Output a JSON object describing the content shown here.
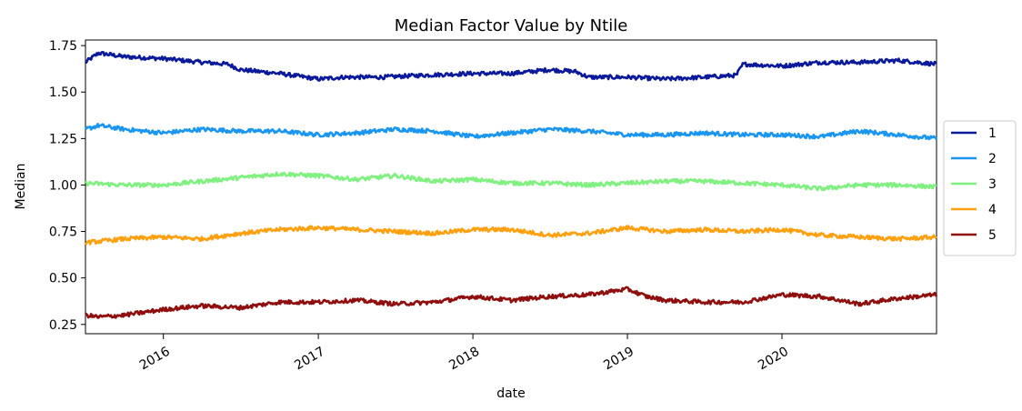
{
  "chart_data": {
    "type": "line",
    "title": "Median Factor Value by Ntile",
    "xlabel": "date",
    "ylabel": "Median",
    "xlim": [
      "2015-07-01",
      "2020-12-31"
    ],
    "ylim": [
      0.2,
      1.78
    ],
    "grid": false,
    "legend_position": "right",
    "x_ticks": [
      "2016-01-01",
      "2017-01-01",
      "2018-01-01",
      "2019-01-01",
      "2020-01-01"
    ],
    "x_tick_labels": [
      "2016",
      "2017",
      "2018",
      "2019",
      "2020"
    ],
    "y_ticks": [
      0.25,
      0.5,
      0.75,
      1.0,
      1.25,
      1.5,
      1.75
    ],
    "y_tick_labels": [
      "0.25",
      "0.50",
      "0.75",
      "1.00",
      "1.25",
      "1.50",
      "1.75"
    ],
    "series": [
      {
        "name": "1",
        "color": "#0a1a9a",
        "x": [
          "2015-07-01",
          "2015-08-01",
          "2015-10-01",
          "2016-01-01",
          "2016-04-01",
          "2016-06-01",
          "2016-07-01",
          "2016-10-01",
          "2017-01-01",
          "2017-03-01",
          "2017-06-01",
          "2017-09-01",
          "2018-01-01",
          "2018-04-01",
          "2018-07-01",
          "2018-09-01",
          "2018-10-01",
          "2019-01-01",
          "2019-04-01",
          "2019-07-01",
          "2019-09-15",
          "2019-10-01",
          "2020-01-01",
          "2020-04-01",
          "2020-07-01",
          "2020-10-01",
          "2020-12-31"
        ],
        "values": [
          1.66,
          1.71,
          1.69,
          1.68,
          1.66,
          1.65,
          1.62,
          1.6,
          1.57,
          1.58,
          1.58,
          1.59,
          1.6,
          1.6,
          1.62,
          1.61,
          1.58,
          1.58,
          1.57,
          1.58,
          1.59,
          1.65,
          1.64,
          1.66,
          1.66,
          1.67,
          1.65
        ]
      },
      {
        "name": "2",
        "color": "#1a96f0",
        "x": [
          "2015-07-01",
          "2015-08-01",
          "2015-10-01",
          "2016-01-01",
          "2016-04-01",
          "2016-07-01",
          "2016-10-01",
          "2017-01-01",
          "2017-04-01",
          "2017-07-01",
          "2017-10-01",
          "2018-01-01",
          "2018-04-01",
          "2018-07-01",
          "2018-10-01",
          "2019-01-01",
          "2019-04-01",
          "2019-07-01",
          "2019-10-01",
          "2020-01-01",
          "2020-04-01",
          "2020-07-01",
          "2020-10-01",
          "2020-12-31"
        ],
        "values": [
          1.3,
          1.32,
          1.3,
          1.28,
          1.3,
          1.29,
          1.29,
          1.27,
          1.28,
          1.3,
          1.29,
          1.26,
          1.28,
          1.3,
          1.29,
          1.27,
          1.27,
          1.28,
          1.27,
          1.27,
          1.26,
          1.29,
          1.27,
          1.25
        ]
      },
      {
        "name": "3",
        "color": "#80f080",
        "x": [
          "2015-07-01",
          "2015-10-01",
          "2016-01-01",
          "2016-04-01",
          "2016-07-01",
          "2016-10-01",
          "2017-01-01",
          "2017-04-01",
          "2017-07-01",
          "2017-10-01",
          "2018-01-01",
          "2018-04-01",
          "2018-07-01",
          "2018-10-01",
          "2019-01-01",
          "2019-04-01",
          "2019-07-01",
          "2019-10-01",
          "2020-01-01",
          "2020-04-01",
          "2020-07-01",
          "2020-10-01",
          "2020-12-31"
        ],
        "values": [
          1.01,
          1.0,
          1.0,
          1.02,
          1.04,
          1.06,
          1.05,
          1.03,
          1.05,
          1.02,
          1.03,
          1.01,
          1.01,
          1.0,
          1.01,
          1.02,
          1.02,
          1.01,
          1.0,
          0.98,
          1.0,
          1.0,
          0.99
        ]
      },
      {
        "name": "4",
        "color": "#ffa010",
        "x": [
          "2015-07-01",
          "2015-10-01",
          "2016-01-01",
          "2016-04-01",
          "2016-07-01",
          "2016-10-01",
          "2017-01-01",
          "2017-04-01",
          "2017-07-01",
          "2017-10-01",
          "2018-01-01",
          "2018-04-01",
          "2018-07-01",
          "2018-10-01",
          "2019-01-01",
          "2019-04-01",
          "2019-07-01",
          "2019-10-01",
          "2020-01-01",
          "2020-04-01",
          "2020-07-01",
          "2020-10-01",
          "2020-12-31"
        ],
        "values": [
          0.69,
          0.71,
          0.72,
          0.71,
          0.74,
          0.76,
          0.77,
          0.76,
          0.75,
          0.74,
          0.76,
          0.76,
          0.73,
          0.74,
          0.77,
          0.75,
          0.76,
          0.75,
          0.76,
          0.73,
          0.72,
          0.71,
          0.72
        ]
      },
      {
        "name": "5",
        "color": "#8f0f0f",
        "x": [
          "2015-07-01",
          "2015-08-01",
          "2015-10-01",
          "2016-01-01",
          "2016-04-01",
          "2016-07-01",
          "2016-10-01",
          "2017-01-01",
          "2017-04-01",
          "2017-07-01",
          "2017-10-01",
          "2018-01-01",
          "2018-04-01",
          "2018-07-01",
          "2018-10-01",
          "2019-01-01",
          "2019-02-15",
          "2019-04-01",
          "2019-07-01",
          "2019-10-01",
          "2020-01-01",
          "2020-04-01",
          "2020-07-01",
          "2020-10-01",
          "2020-12-31"
        ],
        "values": [
          0.3,
          0.29,
          0.3,
          0.33,
          0.35,
          0.34,
          0.37,
          0.37,
          0.38,
          0.36,
          0.37,
          0.4,
          0.38,
          0.4,
          0.41,
          0.44,
          0.4,
          0.38,
          0.37,
          0.37,
          0.41,
          0.4,
          0.36,
          0.39,
          0.41
        ]
      }
    ]
  }
}
